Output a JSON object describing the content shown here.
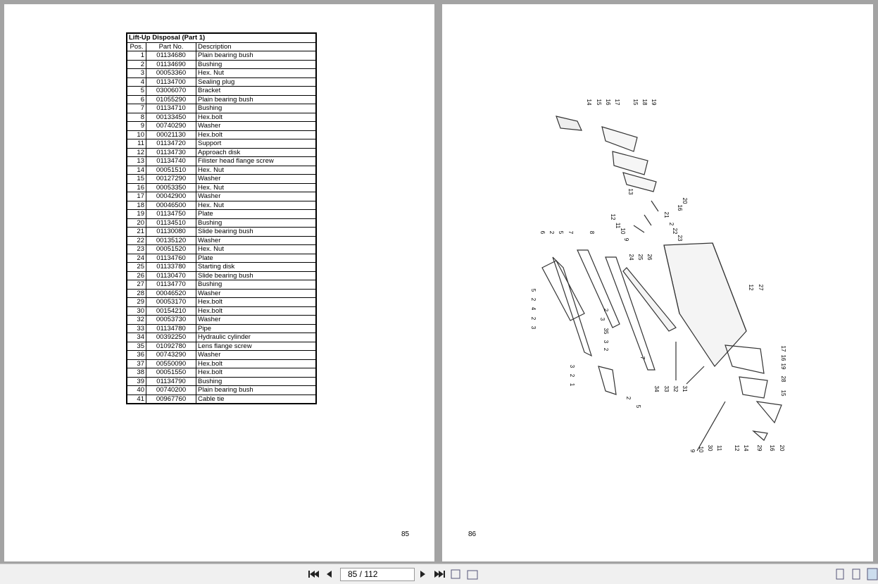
{
  "left_page": {
    "table": {
      "title": "Lift-Up Disposal (Part 1)",
      "headers": [
        "Pos.",
        "Part No.",
        "Description"
      ],
      "rows": [
        [
          "1",
          "01134680",
          "Plain bearing bush"
        ],
        [
          "2",
          "01134690",
          "Bushing"
        ],
        [
          "3",
          "00053360",
          "Hex. Nut"
        ],
        [
          "4",
          "01134700",
          "Sealing plug"
        ],
        [
          "5",
          "03006070",
          "Bracket"
        ],
        [
          "6",
          "01055290",
          "Plain bearing bush"
        ],
        [
          "7",
          "01134710",
          "Bushing"
        ],
        [
          "8",
          "00133450",
          "Hex.bolt"
        ],
        [
          "9",
          "00740290",
          "Washer"
        ],
        [
          "10",
          "00021130",
          "Hex.bolt"
        ],
        [
          "11",
          "01134720",
          "Support"
        ],
        [
          "12",
          "01134730",
          "Approach disk"
        ],
        [
          "13",
          "01134740",
          "Filister head flange screw"
        ],
        [
          "14",
          "00051510",
          "Hex. Nut"
        ],
        [
          "15",
          "00127290",
          "Washer"
        ],
        [
          "16",
          "00053350",
          "Hex. Nut"
        ],
        [
          "17",
          "00042900",
          "Washer"
        ],
        [
          "18",
          "00046500",
          "Hex. Nut"
        ],
        [
          "19",
          "01134750",
          "Plate"
        ],
        [
          "20",
          "01134510",
          "Bushing"
        ],
        [
          "21",
          "01130080",
          "Slide bearing bush"
        ],
        [
          "22",
          "00135120",
          "Washer"
        ],
        [
          "23",
          "00051520",
          "Hex. Nut"
        ],
        [
          "24",
          "01134760",
          "Plate"
        ],
        [
          "25",
          "01133780",
          "Starting disk"
        ],
        [
          "26",
          "01130470",
          "Slide bearing bush"
        ],
        [
          "27",
          "01134770",
          "Bushing"
        ],
        [
          "28",
          "00046520",
          "Washer"
        ],
        [
          "29",
          "00053170",
          "Hex.bolt"
        ],
        [
          "30",
          "00154210",
          "Hex.bolt"
        ],
        [
          "32",
          "00053730",
          "Washer"
        ],
        [
          "33",
          "01134780",
          "Pipe"
        ],
        [
          "34",
          "00392250",
          "Hydraulic cylinder"
        ],
        [
          "35",
          "01092780",
          "Lens flange screw"
        ],
        [
          "36",
          "00743290",
          "Washer"
        ],
        [
          "37",
          "00550090",
          "Hex.bolt"
        ],
        [
          "38",
          "00051550",
          "Hex.bolt"
        ],
        [
          "39",
          "01134790",
          "Bushing"
        ],
        [
          "40",
          "00740200",
          "Plain bearing bush"
        ],
        [
          "41",
          "00967760",
          "Cable tie"
        ]
      ]
    },
    "page_number": "85"
  },
  "right_page": {
    "page_number": "86",
    "callouts": [
      "14",
      "15",
      "16",
      "17",
      "15",
      "18",
      "19",
      "13",
      "20",
      "16",
      "21",
      "2",
      "22",
      "23",
      "12",
      "11",
      "10",
      "9",
      "6",
      "2",
      "5",
      "7",
      "8",
      "24",
      "25",
      "26",
      "12",
      "27",
      "5",
      "2",
      "4",
      "2",
      "3",
      "2",
      "3",
      "3",
      "35",
      "2",
      "7",
      "3",
      "2",
      "1",
      "2",
      "5",
      "34",
      "33",
      "32",
      "31",
      "17",
      "16",
      "19",
      "28",
      "15",
      "9",
      "10",
      "30",
      "11",
      "12",
      "14",
      "29",
      "16",
      "20"
    ]
  },
  "toolbar": {
    "page_field": "85 / 112"
  }
}
